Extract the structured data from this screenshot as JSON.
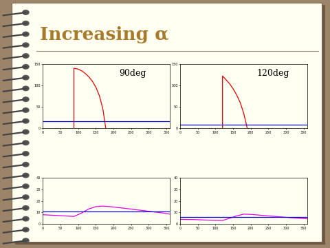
{
  "title": "Increasing α",
  "chart_data": [
    {
      "type": "line",
      "annotation": "90deg",
      "xlim": [
        0,
        360
      ],
      "xticks": [
        0,
        50,
        100,
        150,
        200,
        250,
        300,
        350
      ],
      "ylim": [
        0,
        150
      ],
      "yticks": [
        0,
        50,
        100,
        150
      ],
      "series": [
        {
          "color": "#e00000",
          "x": [
            88,
            88,
            100,
            110,
            120,
            130,
            140,
            150,
            160,
            170,
            178
          ],
          "values": [
            0,
            140,
            138,
            134,
            128,
            120,
            110,
            96,
            76,
            45,
            0
          ]
        },
        {
          "color": "#0000cc",
          "x": [
            0,
            360
          ],
          "values": [
            17,
            17
          ]
        }
      ]
    },
    {
      "type": "line",
      "annotation": "120deg",
      "xlim": [
        0,
        360
      ],
      "xticks": [
        0,
        50,
        100,
        150,
        200,
        250,
        300,
        350
      ],
      "ylim": [
        0,
        150
      ],
      "yticks": [
        0,
        50,
        100,
        150
      ],
      "series": [
        {
          "color": "#e00000",
          "x": [
            120,
            120,
            130,
            140,
            150,
            160,
            170,
            180,
            190
          ],
          "values": [
            0,
            122,
            113,
            104,
            92,
            78,
            60,
            35,
            0
          ]
        },
        {
          "color": "#0000cc",
          "x": [
            0,
            360
          ],
          "values": [
            8,
            8
          ]
        }
      ]
    },
    {
      "type": "line",
      "xlim": [
        0,
        360
      ],
      "xticks": [
        0,
        50,
        100,
        150,
        200,
        250,
        300,
        350
      ],
      "ylim": [
        0,
        40
      ],
      "yticks": [
        0,
        10,
        20,
        30,
        40
      ],
      "series": [
        {
          "color": "#e000e0",
          "x": [
            0,
            30,
            60,
            88,
            110,
            130,
            150,
            170,
            190,
            220,
            260,
            300,
            340,
            360
          ],
          "values": [
            8,
            7.5,
            7,
            6.5,
            9.5,
            13,
            15,
            15.5,
            15,
            14,
            12.5,
            11,
            9.5,
            8.5
          ]
        },
        {
          "color": "#0000cc",
          "x": [
            0,
            360
          ],
          "values": [
            11,
            11
          ]
        }
      ]
    },
    {
      "type": "line",
      "xlim": [
        0,
        360
      ],
      "xticks": [
        0,
        50,
        100,
        150,
        200,
        250,
        300,
        350
      ],
      "ylim": [
        0,
        40
      ],
      "yticks": [
        0,
        10,
        20,
        30,
        40
      ],
      "series": [
        {
          "color": "#e000e0",
          "x": [
            0,
            40,
            80,
            120,
            140,
            160,
            180,
            200,
            230,
            270,
            310,
            360
          ],
          "values": [
            4,
            3.8,
            3.3,
            3,
            5,
            7,
            8.5,
            8.3,
            7.5,
            6.5,
            5.5,
            4.5
          ]
        },
        {
          "color": "#0000cc",
          "x": [
            0,
            360
          ],
          "values": [
            6,
            6
          ]
        }
      ]
    }
  ]
}
